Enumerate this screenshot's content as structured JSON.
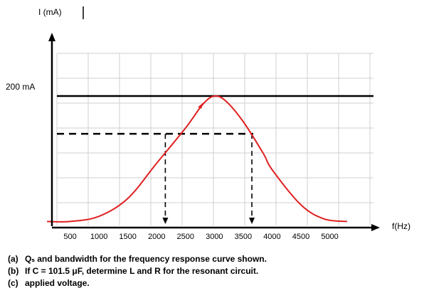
{
  "chart_data": {
    "type": "line",
    "title": "",
    "ylabel": "I (mA)",
    "xlabel": "f(Hz)",
    "x_ticks": [
      500,
      1000,
      1500,
      2000,
      2500,
      3000,
      3500,
      4000,
      4500,
      5000
    ],
    "x_tick_labels": [
      "500",
      "1000",
      "1500",
      "2000",
      "2500",
      "3000",
      "3500",
      "4000",
      "4500",
      "5000"
    ],
    "y_marker_label": "200 mA",
    "y_marker_value": 200,
    "xlim": [
      0,
      5500
    ],
    "ylim": [
      0,
      300
    ],
    "grid": true,
    "series": [
      {
        "color": "#e02020",
        "x": [
          100,
          500,
          1000,
          1500,
          2000,
          2500,
          2800,
          3000,
          3200,
          3500,
          3850,
          4000,
          4500,
          4900,
          5300
        ],
        "y": [
          4,
          4,
          12,
          40,
          95,
          150,
          187,
          200,
          192,
          160,
          110,
          85,
          30,
          8,
          4
        ]
      }
    ],
    "annotations": {
      "resonant_level": 200,
      "half_power_level": 141,
      "f1": 2150,
      "f2": 3650
    }
  },
  "questions": [
    {
      "letter": "(a)",
      "text": "Qₛ and bandwidth for the frequency response curve shown."
    },
    {
      "letter": "(b)",
      "text": "If  C = 101.5 μF, determine L and R for the resonant circuit."
    },
    {
      "letter": "(c)",
      "text": "applied voltage."
    }
  ]
}
